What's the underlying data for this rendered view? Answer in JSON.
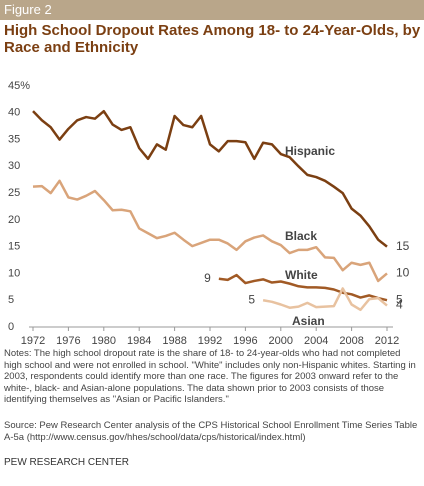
{
  "figure_label": "Figure 2",
  "chart_data": {
    "type": "line",
    "title": "High School Dropout Rates Among 18- to 24-Year-Olds, by Race and Ethnicity",
    "x": [
      1972,
      1973,
      1974,
      1975,
      1976,
      1977,
      1978,
      1979,
      1980,
      1981,
      1982,
      1983,
      1984,
      1985,
      1986,
      1987,
      1988,
      1989,
      1990,
      1991,
      1992,
      1993,
      1994,
      1995,
      1996,
      1997,
      1998,
      1999,
      2000,
      2001,
      2002,
      2003,
      2004,
      2005,
      2006,
      2007,
      2008,
      2009,
      2010,
      2011,
      2012
    ],
    "xlim": [
      1972,
      2012
    ],
    "xticks": [
      1972,
      1976,
      1980,
      1984,
      1988,
      1992,
      1996,
      2000,
      2004,
      2008,
      2012
    ],
    "ylim": [
      0,
      45
    ],
    "yticks": [
      0,
      5,
      10,
      15,
      20,
      25,
      30,
      35,
      40,
      {
        "value": 45,
        "label": "45%"
      }
    ],
    "series": [
      {
        "name": "Hispanic",
        "color": "#7b3f12",
        "values": [
          40.3,
          38.6,
          37.3,
          35.0,
          37.0,
          38.6,
          39.2,
          38.9,
          40.3,
          37.8,
          36.8,
          37.3,
          33.4,
          31.4,
          34.1,
          33.1,
          39.4,
          37.7,
          37.3,
          39.4,
          34.1,
          32.8,
          34.7,
          34.7,
          34.5,
          31.4,
          34.4,
          34.1,
          32.3,
          31.7,
          30.0,
          28.4,
          28.0,
          27.3,
          26.2,
          25.0,
          22.1,
          20.8,
          18.8,
          16.3,
          15
        ]
      },
      {
        "name": "Black",
        "color": "#d9a47a",
        "values": [
          26.2,
          26.3,
          25.0,
          27.3,
          24.2,
          23.8,
          24.5,
          25.4,
          23.7,
          21.8,
          21.9,
          21.6,
          18.4,
          17.5,
          16.6,
          17.0,
          17.6,
          16.3,
          15.1,
          15.7,
          16.3,
          16.3,
          15.6,
          14.4,
          16.0,
          16.7,
          17.1,
          16.0,
          15.3,
          13.8,
          14.4,
          14.4,
          14.9,
          13.0,
          12.9,
          10.6,
          12.0,
          11.6,
          12.0,
          8.6,
          10
        ]
      },
      {
        "name": "White",
        "color": "#a15a25",
        "values": [
          null,
          null,
          null,
          null,
          null,
          null,
          null,
          null,
          null,
          null,
          null,
          null,
          null,
          null,
          null,
          null,
          null,
          null,
          null,
          null,
          null,
          9,
          8.8,
          9.7,
          8.2,
          8.6,
          8.9,
          8.3,
          8.5,
          8.1,
          7.6,
          7.4,
          7.4,
          7.3,
          7.0,
          6.4,
          6.1,
          5.5,
          5.9,
          5.4,
          5
        ]
      },
      {
        "name": "Asian",
        "color": "#e8c2a0",
        "values": [
          null,
          null,
          null,
          null,
          null,
          null,
          null,
          null,
          null,
          null,
          null,
          null,
          null,
          null,
          null,
          null,
          null,
          null,
          null,
          null,
          null,
          null,
          null,
          null,
          null,
          null,
          5,
          4.7,
          4.2,
          3.6,
          3.8,
          4.5,
          3.7,
          3.8,
          3.9,
          7.2,
          4.2,
          3.2,
          5.2,
          5.4,
          4
        ]
      }
    ]
  },
  "notes": "Notes: The high school dropout rate is the share of 18- to 24-year-olds who had not completed high school and were not enrolled in school. \"White\" includes only non-Hispanic whites. Starting in 2003, respondents could identify more than one race. The figures for 2003 onward refer to the white-, black- and Asian-alone populations. The data shown prior to 2003 consists of those identifying themselves as \"Asian or Pacific Islanders.\"",
  "source": "Source:  Pew Research Center analysis of the CPS  Historical School Enrollment Time Series Table A-5a (http://www.census.gov/hhes/school/data/cps/historical/index.html)",
  "footer": "PEW RESEARCH CENTER"
}
